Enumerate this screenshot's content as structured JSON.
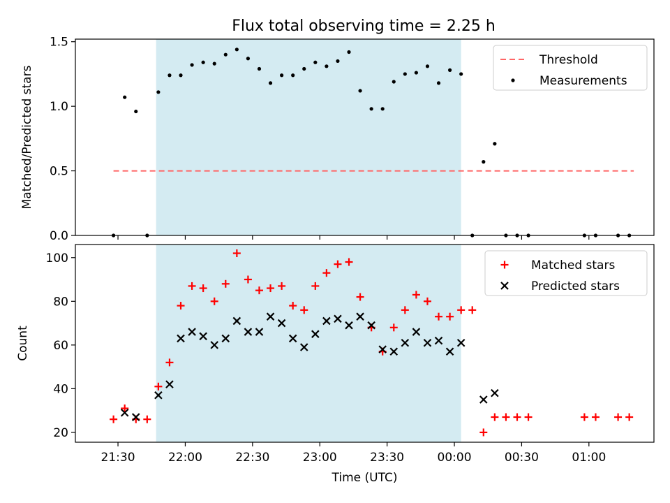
{
  "title": "Flux total observing time = 2.25 h",
  "colors": {
    "shade": "#add8e6",
    "threshold": "#ff6666",
    "measurement": "#000000",
    "matched": "#ff0000",
    "predicted": "#000000"
  },
  "chart_data": [
    {
      "type": "scatter",
      "ylabel": "Matched/Predicted stars",
      "ylim": [
        0,
        1.52
      ],
      "yticks": [
        0.0,
        0.5,
        1.0,
        1.5
      ],
      "ytick_labels": [
        "0.0",
        "0.5",
        "1.0",
        "1.5"
      ],
      "shaded_span": [
        "21:47",
        "00:03"
      ],
      "legend": {
        "placement": "top-right",
        "entries": [
          "Threshold",
          "Measurements"
        ]
      },
      "threshold": {
        "name": "Threshold",
        "y": 0.5,
        "x_from": "21:28",
        "x_to": "01:20"
      },
      "series": [
        {
          "name": "Measurements",
          "points": [
            [
              "21:28",
              0.0
            ],
            [
              "21:33",
              1.07
            ],
            [
              "21:38",
              0.96
            ],
            [
              "21:43",
              0.0
            ],
            [
              "21:48",
              1.11
            ],
            [
              "21:53",
              1.24
            ],
            [
              "21:58",
              1.24
            ],
            [
              "22:03",
              1.32
            ],
            [
              "22:08",
              1.34
            ],
            [
              "22:13",
              1.33
            ],
            [
              "22:18",
              1.4
            ],
            [
              "22:23",
              1.44
            ],
            [
              "22:28",
              1.37
            ],
            [
              "22:33",
              1.29
            ],
            [
              "22:38",
              1.18
            ],
            [
              "22:43",
              1.24
            ],
            [
              "22:48",
              1.24
            ],
            [
              "22:53",
              1.29
            ],
            [
              "22:58",
              1.34
            ],
            [
              "23:03",
              1.31
            ],
            [
              "23:08",
              1.35
            ],
            [
              "23:13",
              1.42
            ],
            [
              "23:18",
              1.12
            ],
            [
              "23:23",
              0.98
            ],
            [
              "23:28",
              0.98
            ],
            [
              "23:33",
              1.19
            ],
            [
              "23:38",
              1.25
            ],
            [
              "23:43",
              1.26
            ],
            [
              "23:48",
              1.31
            ],
            [
              "23:53",
              1.18
            ],
            [
              "23:58",
              1.28
            ],
            [
              "00:03",
              1.25
            ],
            [
              "00:08",
              0.0
            ],
            [
              "00:13",
              0.57
            ],
            [
              "00:18",
              0.71
            ],
            [
              "00:23",
              0.0
            ],
            [
              "00:28",
              0.0
            ],
            [
              "00:33",
              0.0
            ],
            [
              "00:58",
              0.0
            ],
            [
              "01:03",
              0.0
            ],
            [
              "01:13",
              0.0
            ],
            [
              "01:18",
              0.0
            ]
          ]
        }
      ]
    },
    {
      "type": "scatter",
      "xlabel": "Time (UTC)",
      "ylabel": "Count",
      "ylim": [
        15.5,
        106
      ],
      "yticks": [
        20,
        40,
        60,
        80,
        100
      ],
      "ytick_labels": [
        "20",
        "40",
        "60",
        "80",
        "100"
      ],
      "xlim": [
        "21:11",
        "01:29"
      ],
      "xticks": [
        "21:30",
        "22:00",
        "22:30",
        "23:00",
        "23:30",
        "00:00",
        "00:30",
        "01:00"
      ],
      "shaded_span": [
        "21:47",
        "00:03"
      ],
      "legend": {
        "placement": "top-right",
        "entries": [
          "Matched stars",
          "Predicted stars"
        ]
      },
      "series": [
        {
          "name": "Matched stars",
          "points": [
            [
              "21:28",
              26
            ],
            [
              "21:33",
              31
            ],
            [
              "21:38",
              26
            ],
            [
              "21:43",
              26
            ],
            [
              "21:48",
              41
            ],
            [
              "21:53",
              52
            ],
            [
              "21:58",
              78
            ],
            [
              "22:03",
              87
            ],
            [
              "22:08",
              86
            ],
            [
              "22:13",
              80
            ],
            [
              "22:18",
              88
            ],
            [
              "22:23",
              102
            ],
            [
              "22:28",
              90
            ],
            [
              "22:33",
              85
            ],
            [
              "22:38",
              86
            ],
            [
              "22:43",
              87
            ],
            [
              "22:48",
              78
            ],
            [
              "22:53",
              76
            ],
            [
              "22:58",
              87
            ],
            [
              "23:03",
              93
            ],
            [
              "23:08",
              97
            ],
            [
              "23:13",
              98
            ],
            [
              "23:18",
              82
            ],
            [
              "23:23",
              68
            ],
            [
              "23:28",
              57
            ],
            [
              "23:33",
              68
            ],
            [
              "23:38",
              76
            ],
            [
              "23:43",
              83
            ],
            [
              "23:48",
              80
            ],
            [
              "23:53",
              73
            ],
            [
              "23:58",
              73
            ],
            [
              "00:03",
              76
            ],
            [
              "00:08",
              76
            ],
            [
              "00:13",
              20
            ],
            [
              "00:18",
              27
            ],
            [
              "00:23",
              27
            ],
            [
              "00:28",
              27
            ],
            [
              "00:33",
              27
            ],
            [
              "00:58",
              27
            ],
            [
              "01:03",
              27
            ],
            [
              "01:13",
              27
            ],
            [
              "01:18",
              27
            ]
          ]
        },
        {
          "name": "Predicted stars",
          "points": [
            [
              "21:33",
              29
            ],
            [
              "21:38",
              27
            ],
            [
              "21:48",
              37
            ],
            [
              "21:53",
              42
            ],
            [
              "21:58",
              63
            ],
            [
              "22:03",
              66
            ],
            [
              "22:08",
              64
            ],
            [
              "22:13",
              60
            ],
            [
              "22:18",
              63
            ],
            [
              "22:23",
              71
            ],
            [
              "22:28",
              66
            ],
            [
              "22:33",
              66
            ],
            [
              "22:38",
              73
            ],
            [
              "22:43",
              70
            ],
            [
              "22:48",
              63
            ],
            [
              "22:53",
              59
            ],
            [
              "22:58",
              65
            ],
            [
              "23:03",
              71
            ],
            [
              "23:08",
              72
            ],
            [
              "23:13",
              69
            ],
            [
              "23:18",
              73
            ],
            [
              "23:23",
              69
            ],
            [
              "23:28",
              58
            ],
            [
              "23:33",
              57
            ],
            [
              "23:38",
              61
            ],
            [
              "23:43",
              66
            ],
            [
              "23:48",
              61
            ],
            [
              "23:53",
              62
            ],
            [
              "23:58",
              57
            ],
            [
              "00:03",
              61
            ],
            [
              "00:13",
              35
            ],
            [
              "00:18",
              38
            ]
          ]
        }
      ]
    }
  ]
}
